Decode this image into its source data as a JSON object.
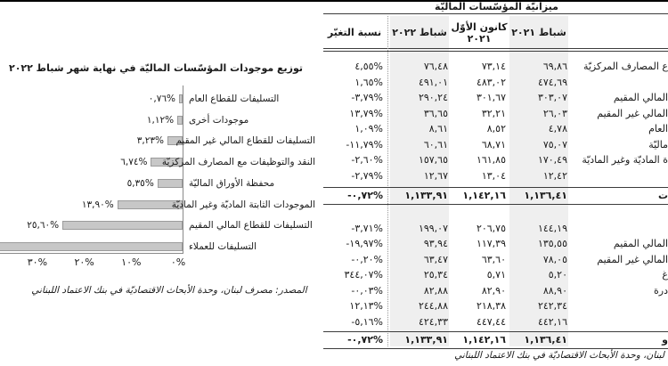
{
  "chart": {
    "title": "توزيع موجودات المؤسّسات الماليّة في نهاية شهر شباط ٢٠٢٢",
    "source_note": "المصدر: مصرف لبنان، وحدة الأبحاث الاقتصاديّة في بنك الاعتماد اللبناني",
    "bars": [
      {
        "label": "التسليفات للقطاع العام",
        "value": 0.76,
        "value_label": "٠,٧٦%",
        "clipped": false
      },
      {
        "label": "موجودات أخرى",
        "value": 1.12,
        "value_label": "١,١٢%",
        "clipped": false
      },
      {
        "label": "التسليفات للقطاع المالي غير المقيم",
        "value": 3.23,
        "value_label": "٣,٢٣%",
        "clipped": false
      },
      {
        "label": "النقد والتوظيفات مع المصارف المركزيّة",
        "value": 6.74,
        "value_label": "٦,٧٤%",
        "clipped": false
      },
      {
        "label": "محفظة الأوراق الماليّة",
        "value": 5.35,
        "value_label": "٥,٣٥%",
        "clipped": false
      },
      {
        "label": "الموجودات الثابتة الماديّة وغير الماديّة",
        "value": 13.9,
        "value_label": "١٣,٩٠%",
        "clipped": false
      },
      {
        "label": "التسليفات للقطاع المالي المقيم",
        "value": 25.6,
        "value_label": "٢٥,٦٠%",
        "clipped": false
      },
      {
        "label": "التسليفات للعملاء",
        "value": null,
        "value_label": "",
        "clipped": true
      }
    ],
    "x_ticks": [
      {
        "label": "٣٠%",
        "value": 30
      },
      {
        "label": "٢٠%",
        "value": 20
      },
      {
        "label": "١٠%",
        "value": 10
      },
      {
        "label": "٠%",
        "value": 0
      }
    ]
  },
  "table": {
    "title": "ميزانيّة المؤسّسات الماليّة",
    "columns": {
      "change": "نسبة التغيّر",
      "feb2022": "شباط ٢٠٢٢",
      "dec2021": "كانون الأوّل ٢٠٢١",
      "feb2021": "شباط ٢٠٢١"
    },
    "sections": [
      {
        "rows": [
          {
            "label": "ع المصارف المركزيّة",
            "feb2021": "٦٩,٨٦",
            "dec2021": "٧٣,١٤",
            "feb2022": "٧٦,٤٨",
            "change": "٤,٥٥%"
          },
          {
            "label": "",
            "feb2021": "٤٧٤,٦٩",
            "dec2021": "٤٨٣,٠٢",
            "feb2022": "٤٩١,٠١",
            "change": "١,٦٥%"
          },
          {
            "label": "المالي المقيم",
            "feb2021": "٣٠٣,٠٧",
            "dec2021": "٣٠١,٦٧",
            "feb2022": "٢٩٠,٢٤",
            "change": "-٣,٧٩%"
          },
          {
            "label": "المالي غير المقيم",
            "feb2021": "٢٦,٠٣",
            "dec2021": "٣٢,٢١",
            "feb2022": "٣٦,٦٥",
            "change": "١٣,٧٩%"
          },
          {
            "label": "العام",
            "feb2021": "٤,٧٨",
            "dec2021": "٨,٥٢",
            "feb2022": "٨,٦١",
            "change": "١,٠٩%"
          },
          {
            "label": "ماليّة",
            "feb2021": "٧٥,٠٧",
            "dec2021": "٦٨,٧١",
            "feb2022": "٦٠,٦١",
            "change": "-١١,٧٩%"
          },
          {
            "label": "ة الماديّة وغير الماديّة",
            "feb2021": "١٧٠,٤٩",
            "dec2021": "١٦١,٨٥",
            "feb2022": "١٥٧,٦٥",
            "change": "-٢,٦٠%"
          },
          {
            "label": "",
            "feb2021": "١٢,٤٢",
            "dec2021": "١٣,٠٤",
            "feb2022": "١٢,٦٧",
            "change": "-٢,٧٩%"
          }
        ],
        "total": {
          "label": "ت",
          "feb2021": "١,١٣٦,٤١",
          "dec2021": "١,١٤٢,١٦",
          "feb2022": "١,١٣٣,٩١",
          "change": "-٠,٧٢%"
        }
      },
      {
        "rows": [
          {
            "label": "",
            "feb2021": "١٤٤,١٩",
            "dec2021": "٢٠٦,٧٥",
            "feb2022": "١٩٩,٠٧",
            "change": "-٣,٧١%"
          },
          {
            "label": "المالي المقيم",
            "feb2021": "١٣٥,٥٥",
            "dec2021": "١١٧,٣٩",
            "feb2022": "٩٣,٩٤",
            "change": "-١٩,٩٧%"
          },
          {
            "label": "المالي غير المقيم",
            "feb2021": "٧٨,٠٥",
            "dec2021": "٦٣,٦٠",
            "feb2022": "٦٣,٤٧",
            "change": "-٠,٢٠%"
          },
          {
            "label": "غ",
            "feb2021": "٥,٢٠",
            "dec2021": "٥,٧١",
            "feb2022": "٢٥,٣٤",
            "change": "٣٤٤,٠٧%"
          },
          {
            "label": "درة",
            "feb2021": "٨٨,٩٠",
            "dec2021": "٨٢,٩٠",
            "feb2022": "٨٢,٨٨",
            "change": "-٠,٠٣%"
          },
          {
            "label": "",
            "feb2021": "٢٤٢,٣٤",
            "dec2021": "٢١٨,٣٨",
            "feb2022": "٢٤٤,٨٨",
            "change": "١٢,١٣%"
          },
          {
            "label": "",
            "feb2021": "٤٤٢,١٦",
            "dec2021": "٤٤٧,٤٤",
            "feb2022": "٤٢٤,٣٣",
            "change": "-٥,١٦%"
          }
        ],
        "total": {
          "label": "و",
          "feb2021": "١,١٣٦,٤١",
          "dec2021": "١,١٤٢,١٦",
          "feb2022": "١,١٣٣,٩١",
          "change": "-٠,٧٢%"
        }
      }
    ],
    "source_note": "لبنان، وحدة الأبحاث الاقتصاديّة في بنك الاعتماد اللبناني"
  },
  "chart_data": {
    "type": "bar",
    "orientation": "horizontal",
    "title": "توزيع موجودات المؤسّسات الماليّة في نهاية شهر شباط ٢٠٢٢",
    "categories": [
      "التسليفات للقطاع العام",
      "موجودات أخرى",
      "التسليفات للقطاع المالي غير المقيم",
      "النقد والتوظيفات مع المصارف المركزيّة",
      "محفظة الأوراق الماليّة",
      "الموجودات الثابتة الماديّة وغير الماديّة",
      "التسليفات للقطاع المالي المقيم",
      "التسليفات للعملاء"
    ],
    "values": [
      0.76,
      1.12,
      3.23,
      6.74,
      5.35,
      13.9,
      25.6,
      null
    ],
    "value_labels": [
      "٠,٧٦%",
      "١,١٢%",
      "٣,٢٣%",
      "٦,٧٤%",
      "٥,٣٥%",
      "١٣,٩٠%",
      "٢٥,٦٠%",
      ""
    ],
    "x_tick_labels": [
      "٠%",
      "١٠%",
      "٢٠%",
      "٣٠%"
    ],
    "xlim": [
      0,
      40
    ],
    "axis_direction": "right-to-left",
    "grid": false,
    "legend": "none"
  }
}
